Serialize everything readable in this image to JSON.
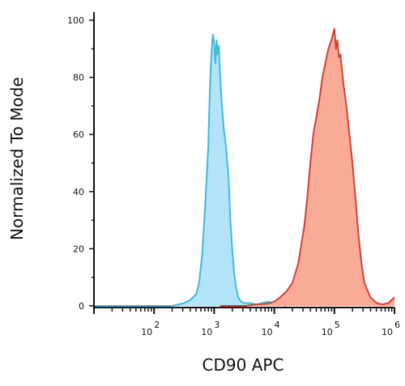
{
  "chart_data": {
    "type": "area",
    "title": "",
    "xlabel": "CD90 APC",
    "ylabel": "Normalized To Mode",
    "x_scale": "log",
    "xlim": [
      10,
      1000000
    ],
    "ylim": [
      0,
      100
    ],
    "grid": false,
    "legend": "none",
    "x_tick_labels": [
      {
        "base": "10",
        "exp": "2",
        "value": 100
      },
      {
        "base": "10",
        "exp": "3",
        "value": 1000
      },
      {
        "base": "10",
        "exp": "4",
        "value": 10000
      },
      {
        "base": "10",
        "exp": "5",
        "value": 100000
      },
      {
        "base": "10",
        "exp": "6",
        "value": 1000000
      }
    ],
    "y_ticks": [
      0,
      20,
      40,
      60,
      80,
      100
    ],
    "series": [
      {
        "fill": "#b3e3f7",
        "stroke": "#3fbadf",
        "x": [
          10,
          200,
          316,
          398,
          501,
          562,
          631,
          708,
          794,
          832,
          871,
          912,
          955,
          1000,
          1047,
          1096,
          1148,
          1202,
          1259,
          1349,
          1445,
          1585,
          1738,
          1862,
          1995,
          2138,
          2291,
          2512,
          2818,
          3162,
          3981,
          5012,
          6310,
          7943,
          10000,
          12589,
          15849
        ],
        "y": [
          0,
          0,
          1,
          2,
          4,
          8,
          18,
          35,
          55,
          70,
          82,
          90,
          95,
          92,
          85,
          93,
          88,
          91,
          80,
          70,
          62,
          55,
          45,
          30,
          20,
          12,
          7,
          3,
          1.5,
          1,
          1,
          0.5,
          1,
          1.5,
          1,
          0.5,
          0
        ]
      },
      {
        "fill": "#f9ab98",
        "stroke": "#d53f36",
        "x": [
          1259,
          3162,
          5012,
          7943,
          10000,
          12589,
          15849,
          19953,
          25119,
          31623,
          35481,
          39811,
          44668,
          50119,
          56234,
          63096,
          70795,
          79433,
          89125,
          100000,
          106000,
          112202,
          119000,
          125893,
          141254,
          158489,
          177828,
          199526,
          223872,
          251189,
          281838,
          316228,
          398107,
          501187,
          630957,
          794328,
          1000000
        ],
        "y": [
          0,
          0,
          0.5,
          0.8,
          1.5,
          3,
          5,
          8,
          15,
          28,
          38,
          50,
          60,
          66,
          72,
          80,
          85,
          90,
          93,
          97,
          90,
          93,
          87,
          88,
          78,
          70,
          60,
          50,
          38,
          25,
          15,
          8,
          3,
          1,
          0.5,
          1,
          3
        ]
      }
    ]
  }
}
